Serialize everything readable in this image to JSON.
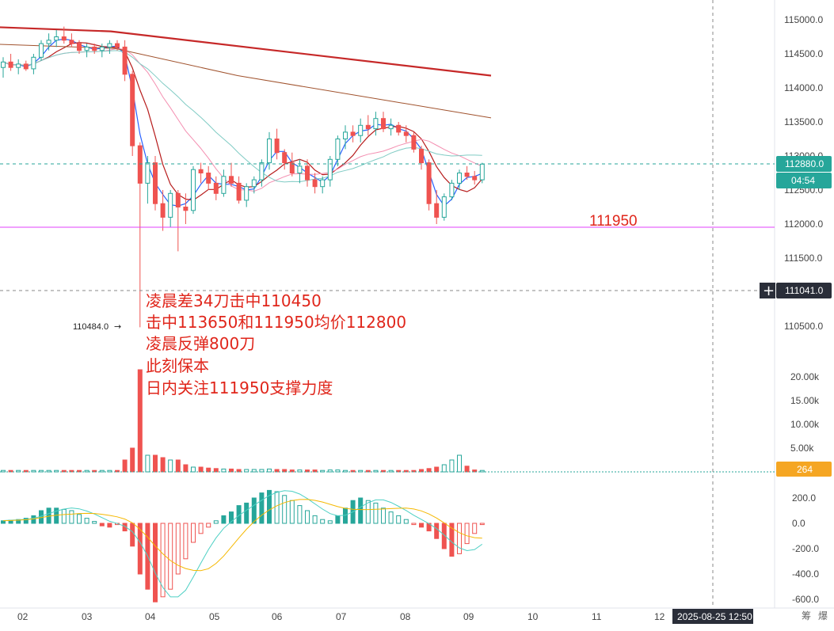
{
  "chart_data": {
    "type": "candlestick",
    "price_axis": {
      "ticks": [
        "115000.0",
        "114500.0",
        "114000.0",
        "113500.0",
        "113000.0",
        "112500.0",
        "112000.0",
        "111500.0",
        "111000.0",
        "110500.0"
      ],
      "range": [
        110000,
        115200
      ]
    },
    "volume_axis": {
      "ticks": [
        "20.00k",
        "15.00k",
        "10.00k",
        "5.00k"
      ]
    },
    "macd_axis": {
      "ticks": [
        "200.0",
        "0.0",
        "-200.0",
        "-400.0",
        "-600.0"
      ]
    },
    "x_axis": {
      "ticks": [
        "02",
        "03",
        "04",
        "05",
        "06",
        "07",
        "08",
        "09",
        "10",
        "11",
        "12"
      ]
    },
    "tags": {
      "last_price": "112880.0",
      "countdown": "04:54",
      "crosshair_price": "111041.0",
      "volume_last": "264",
      "low_marker": "110484.0",
      "date_label": "2025-08-25 12:50"
    },
    "level_line": {
      "value": 111950,
      "label": "111950",
      "color": "#e040fb"
    },
    "annotations": [
      "凌晨差34刀击中110450",
      "击中113650和111950均价112800",
      "凌晨反弹800刀",
      "此刻保本",
      "日内关注111950支撑力度"
    ],
    "candles": [
      [
        114300,
        114450,
        114150,
        114380
      ],
      [
        114380,
        114500,
        114250,
        114300
      ],
      [
        114300,
        114420,
        114200,
        114350
      ],
      [
        114350,
        114400,
        114250,
        114280
      ],
      [
        114280,
        114500,
        114200,
        114450
      ],
      [
        114450,
        114700,
        114400,
        114650
      ],
      [
        114650,
        114800,
        114550,
        114700
      ],
      [
        114700,
        114850,
        114600,
        114750
      ],
      [
        114750,
        114900,
        114650,
        114700
      ],
      [
        114700,
        114800,
        114600,
        114650
      ],
      [
        114650,
        114700,
        114500,
        114550
      ],
      [
        114550,
        114650,
        114450,
        114600
      ],
      [
        114600,
        114650,
        114500,
        114550
      ],
      [
        114550,
        114650,
        114450,
        114600
      ],
      [
        114600,
        114700,
        114500,
        114650
      ],
      [
        114650,
        114700,
        114550,
        114600
      ],
      [
        114600,
        114700,
        114100,
        114200
      ],
      [
        114200,
        114250,
        113000,
        113150
      ],
      [
        113150,
        113200,
        110484,
        112600
      ],
      [
        112600,
        113000,
        112300,
        112900
      ],
      [
        112900,
        113000,
        112200,
        112300
      ],
      [
        112300,
        112500,
        111900,
        112100
      ],
      [
        112100,
        112500,
        111950,
        112450
      ],
      [
        112450,
        112500,
        111600,
        112250
      ],
      [
        112250,
        112450,
        112000,
        112200
      ],
      [
        112200,
        112850,
        112150,
        112800
      ],
      [
        112800,
        112900,
        112600,
        112750
      ],
      [
        112750,
        112850,
        112500,
        112600
      ],
      [
        112600,
        112700,
        112350,
        112450
      ],
      [
        112450,
        112800,
        112400,
        112700
      ],
      [
        112700,
        112900,
        112550,
        112600
      ],
      [
        112600,
        112700,
        112300,
        112350
      ],
      [
        112350,
        112600,
        112250,
        112550
      ],
      [
        112550,
        112700,
        112450,
        112650
      ],
      [
        112650,
        112950,
        112550,
        112900
      ],
      [
        112900,
        113350,
        112800,
        113250
      ],
      [
        113250,
        113400,
        112950,
        113050
      ],
      [
        113050,
        113100,
        112800,
        112900
      ],
      [
        112900,
        113050,
        112700,
        112750
      ],
      [
        112750,
        112950,
        112600,
        112850
      ],
      [
        112850,
        112950,
        112550,
        112650
      ],
      [
        112650,
        112750,
        112450,
        112550
      ],
      [
        112550,
        112700,
        112450,
        112650
      ],
      [
        112650,
        113000,
        112550,
        112950
      ],
      [
        112950,
        113300,
        112850,
        113250
      ],
      [
        113250,
        113450,
        113100,
        113350
      ],
      [
        113350,
        113450,
        113200,
        113300
      ],
      [
        113300,
        113550,
        113200,
        113450
      ],
      [
        113450,
        113600,
        113300,
        113400
      ],
      [
        113400,
        113650,
        113300,
        113550
      ],
      [
        113550,
        113650,
        113350,
        113400
      ],
      [
        113400,
        113550,
        113300,
        113450
      ],
      [
        113450,
        113500,
        113300,
        113350
      ],
      [
        113350,
        113450,
        113200,
        113300
      ],
      [
        113300,
        113350,
        113050,
        113100
      ],
      [
        113100,
        113150,
        112800,
        112900
      ],
      [
        112900,
        112950,
        112200,
        112300
      ],
      [
        112300,
        112500,
        112000,
        112100
      ],
      [
        112100,
        112450,
        112050,
        112400
      ],
      [
        112400,
        112650,
        112350,
        112600
      ],
      [
        112600,
        112800,
        112500,
        112750
      ],
      [
        112750,
        112850,
        112650,
        112700
      ],
      [
        112700,
        112780,
        112580,
        112650
      ],
      [
        112650,
        112900,
        112600,
        112880
      ]
    ],
    "volume": [
      0.3,
      0.3,
      0.3,
      0.3,
      0.3,
      0.3,
      0.3,
      0.3,
      0.3,
      0.3,
      0.3,
      0.3,
      0.3,
      0.3,
      0.3,
      0.3,
      2.5,
      5.0,
      21.5,
      3.5,
      3.5,
      3.0,
      2.5,
      2.5,
      1.5,
      1.0,
      1.0,
      0.8,
      0.7,
      0.6,
      0.6,
      0.5,
      0.5,
      0.5,
      0.5,
      0.6,
      0.5,
      0.5,
      0.4,
      0.4,
      0.4,
      0.4,
      0.3,
      0.4,
      0.4,
      0.3,
      0.3,
      0.3,
      0.3,
      0.3,
      0.3,
      0.3,
      0.3,
      0.3,
      0.3,
      0.5,
      0.7,
      1.0,
      1.5,
      2.5,
      3.5,
      1.2,
      0.4,
      0.3
    ],
    "macd_hist": [
      20,
      25,
      30,
      40,
      60,
      100,
      120,
      120,
      110,
      100,
      70,
      40,
      15,
      -20,
      -30,
      -10,
      -60,
      -180,
      -400,
      -520,
      -620,
      -580,
      -520,
      -400,
      -280,
      -150,
      -80,
      -30,
      20,
      60,
      90,
      140,
      160,
      200,
      240,
      260,
      250,
      220,
      180,
      140,
      100,
      60,
      30,
      20,
      60,
      120,
      180,
      200,
      180,
      160,
      120,
      90,
      60,
      30,
      -10,
      -30,
      -60,
      -120,
      -200,
      -260,
      -240,
      -160,
      -80,
      -10
    ]
  }
}
